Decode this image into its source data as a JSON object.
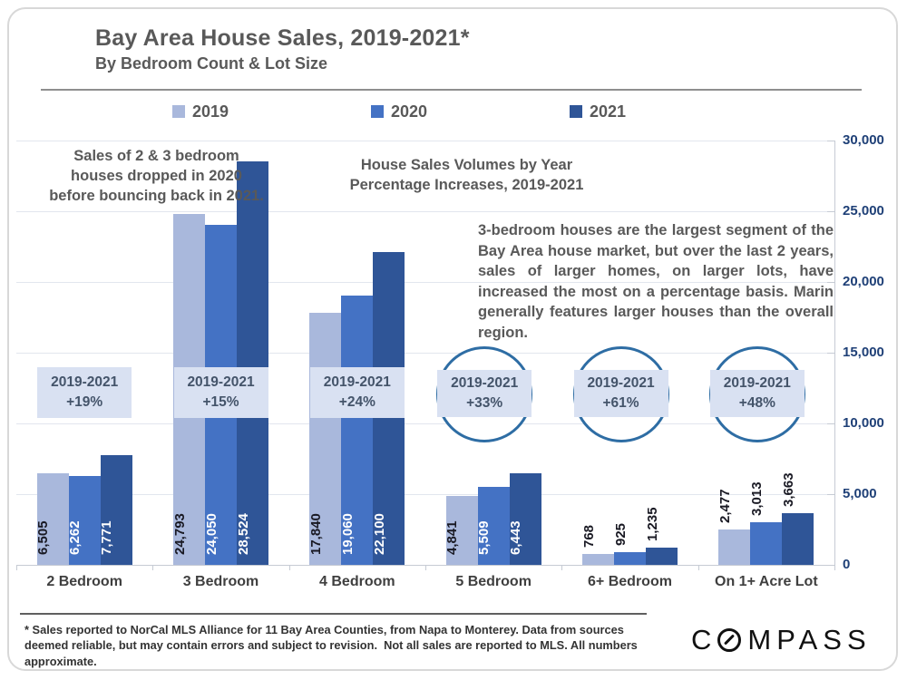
{
  "page": {
    "title": "Bay Area House Sales, 2019-2021*",
    "subtitle": "By Bedroom Count & Lot Size"
  },
  "annotations": {
    "left_note": "Sales of 2 & 3 bedroom\nhouses dropped in 2020\nbefore bouncing back in 2021.",
    "center_heading": "House Sales Volumes by Year\nPercentage Increases, 2019-2021",
    "right_paragraph": "3-bedroom houses are the largest segment of the Bay Area house market, but over the last 2 years, sales of larger homes, on larger lots, have increased the most on a percentage basis. Marin generally features larger houses than the overall region."
  },
  "footer": {
    "disclaimer": "* Sales reported to NorCal MLS Alliance for 11 Bay Area Counties, from Napa to Monterey. Data from sources deemed reliable, but may contain errors and subject to revision.  Not all sales are reported to MLS. All numbers approximate.",
    "logo_text": "COMPASS"
  },
  "colors": {
    "series_2019": "#A9B8DC",
    "series_2020": "#4472C4",
    "series_2021": "#2F5597",
    "gridline": "#E2E6EE",
    "axis_line": "#C6CBD4",
    "y_label": "#1F4077",
    "category_label": "#3F3F3F",
    "value_label_dark": "#191923",
    "value_label_light": "#FFFFFF",
    "callout_bg": "#D9E1F2",
    "callout_text": "#44546A",
    "circle_border": "#2E6DA4"
  },
  "chart_data": {
    "type": "bar",
    "title": "House Sales Volumes by Year",
    "subtitle": "Percentage Increases, 2019-2021",
    "categories": [
      "2 Bedroom",
      "3 Bedroom",
      "4 Bedroom",
      "5 Bedroom",
      "6+ Bedroom",
      "On 1+ Acre Lot"
    ],
    "series": [
      {
        "name": "2019",
        "color": "#A9B8DC",
        "values": [
          6505,
          24793,
          17840,
          4841,
          768,
          2477
        ]
      },
      {
        "name": "2020",
        "color": "#4472C4",
        "values": [
          6262,
          24050,
          19060,
          5509,
          925,
          3013
        ]
      },
      {
        "name": "2021",
        "color": "#2F5597",
        "values": [
          7771,
          28524,
          22100,
          6443,
          1235,
          3663
        ]
      }
    ],
    "value_labels": [
      [
        "6,505",
        "24,793",
        "17,840",
        "4,841",
        "768",
        "2,477"
      ],
      [
        "6,262",
        "24,050",
        "19,060",
        "5,509",
        "925",
        "3,013"
      ],
      [
        "7,771",
        "28,524",
        "22,100",
        "6,443",
        "1,235",
        "3,663"
      ]
    ],
    "callouts": [
      {
        "category": "2 Bedroom",
        "shape": "box",
        "range": "2019-2021",
        "pct": "+19%"
      },
      {
        "category": "3 Bedroom",
        "shape": "box",
        "range": "2019-2021",
        "pct": "+15%"
      },
      {
        "category": "4 Bedroom",
        "shape": "box",
        "range": "2019-2021",
        "pct": "+24%"
      },
      {
        "category": "5 Bedroom",
        "shape": "circle",
        "range": "2019-2021",
        "pct": "+33%"
      },
      {
        "category": "6+ Bedroom",
        "shape": "circle",
        "range": "2019-2021",
        "pct": "+61%"
      },
      {
        "category": "On 1+ Acre Lot",
        "shape": "circle",
        "range": "2019-2021",
        "pct": "+48%"
      }
    ],
    "y_axis": {
      "min": 0,
      "max": 30000,
      "step": 5000,
      "side": "right",
      "tick_labels": [
        "0",
        "5,000",
        "10,000",
        "15,000",
        "20,000",
        "25,000",
        "30,000"
      ]
    },
    "grid": true,
    "legend_position": "top",
    "legend_entries": [
      "2019",
      "2020",
      "2021"
    ]
  }
}
